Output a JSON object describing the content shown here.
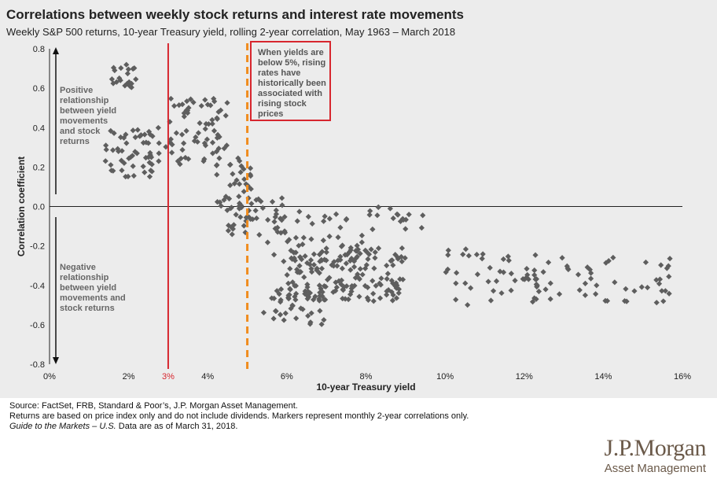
{
  "chart_data": {
    "type": "scatter",
    "title": "Correlations between weekly stock returns and interest rate movements",
    "subtitle": "Weekly S&P 500 returns, 10-year Treasury yield, rolling 2-year correlation, May 1963 – March 2018",
    "xlabel": "10-year Treasury yield",
    "ylabel": "Correlation coefficient",
    "xlim": [
      0,
      16
    ],
    "ylim": [
      -0.8,
      0.8
    ],
    "x_ticks": [
      "0%",
      "2%",
      "4%",
      "6%",
      "8%",
      "10%",
      "12%",
      "14%",
      "16%"
    ],
    "y_ticks": [
      "0.8",
      "0.6",
      "0.4",
      "0.2",
      "0.0",
      "-0.2",
      "-0.4",
      "-0.6",
      "-0.8"
    ],
    "reference_lines": [
      {
        "x": 3,
        "label": "3%",
        "color": "#d7262e",
        "style": "solid"
      },
      {
        "x": 5,
        "label": "",
        "color": "#f08c1e",
        "style": "dashed"
      }
    ],
    "marker_color": "#5e5e5e",
    "clusters": [
      {
        "x": [
          1.5,
          2.2
        ],
        "y": [
          0.58,
          0.72
        ],
        "n": 22
      },
      {
        "x": [
          1.4,
          3.1
        ],
        "y": [
          0.15,
          0.4
        ],
        "n": 60
      },
      {
        "x": [
          3.0,
          4.6
        ],
        "y": [
          0.2,
          0.55
        ],
        "n": 65
      },
      {
        "x": [
          4.2,
          5.1
        ],
        "y": [
          -0.02,
          0.25
        ],
        "n": 35
      },
      {
        "x": [
          4.5,
          6.0
        ],
        "y": [
          -0.15,
          0.05
        ],
        "n": 40
      },
      {
        "x": [
          5.5,
          8.0
        ],
        "y": [
          -0.28,
          -0.02
        ],
        "n": 50
      },
      {
        "x": [
          5.4,
          7.0
        ],
        "y": [
          -0.6,
          -0.4
        ],
        "n": 45
      },
      {
        "x": [
          6.0,
          9.0
        ],
        "y": [
          -0.48,
          -0.2
        ],
        "n": 150
      },
      {
        "x": [
          8.0,
          9.5
        ],
        "y": [
          -0.12,
          0.0
        ],
        "n": 18
      },
      {
        "x": [
          10.0,
          12.5
        ],
        "y": [
          -0.5,
          -0.2
        ],
        "n": 40
      },
      {
        "x": [
          12.0,
          15.8
        ],
        "y": [
          -0.5,
          -0.25
        ],
        "n": 55
      }
    ]
  },
  "annotations": {
    "positive": [
      "Positive",
      "relationship",
      "between yield",
      "movements",
      "and stock",
      "returns"
    ],
    "negative": [
      "Negative",
      "relationship",
      "between yield",
      "movements and",
      "stock returns"
    ],
    "callout": [
      "When yields are",
      "below 5%, rising",
      "rates have",
      "historically been",
      "associated with",
      "rising stock",
      "prices"
    ]
  },
  "footer": {
    "source": "Source: FactSet, FRB, Standard & Poor’s, J.P. Morgan Asset Management.",
    "note": "Returns are based on price index only and do not include dividends. Markers represent monthly 2-year correlations only.",
    "guide_italic": "Guide to the Markets – U.S.",
    "guide_rest": " Data are as of March 31, 2018."
  },
  "logo": {
    "main": "J.P.Morgan",
    "sub": "Asset Management"
  }
}
